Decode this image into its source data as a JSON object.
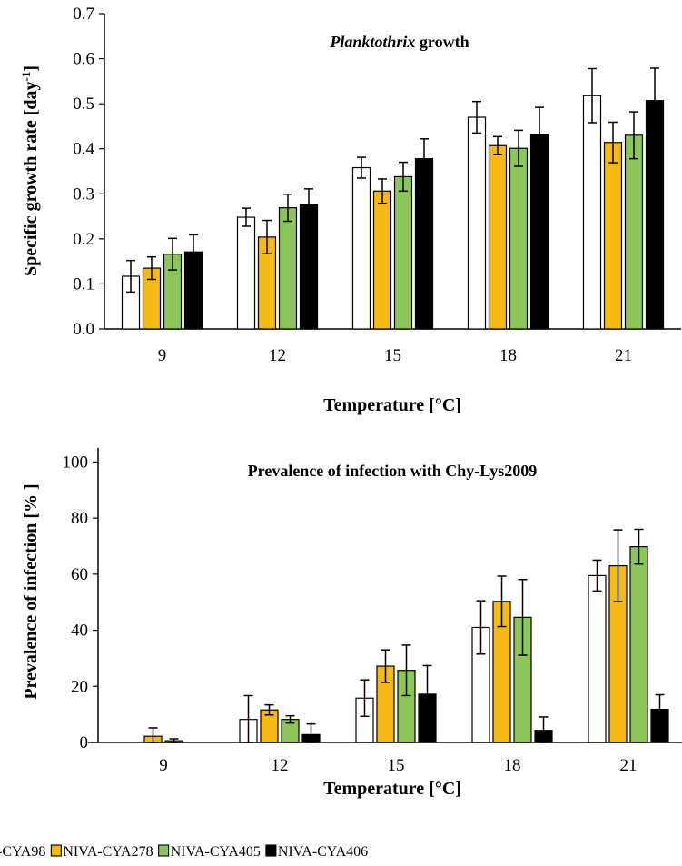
{
  "chart_data": [
    {
      "type": "bar",
      "title_italic": "Planktothrix",
      "title_rest": "growth",
      "xlabel": "Temperature [°C]",
      "ylabel": "Specific growth rate [day",
      "ylabel_sup": "-1",
      "ylabel_close": "]",
      "categories": [
        "9",
        "12",
        "15",
        "18",
        "21"
      ],
      "ylim": [
        0,
        0.7
      ],
      "yticks": [
        0.0,
        0.1,
        0.2,
        0.3,
        0.4,
        0.5,
        0.6,
        0.7
      ],
      "ytick_labels": [
        "0.0",
        "0.1",
        "0.2",
        "0.3",
        "0.4",
        "0.5",
        "0.6",
        "0.7"
      ],
      "grid": false,
      "series": [
        {
          "values": [
            0.117,
            0.248,
            0.358,
            0.47,
            0.518
          ],
          "errors": [
            0.035,
            0.02,
            0.023,
            0.035,
            0.06
          ]
        },
        {
          "values": [
            0.135,
            0.204,
            0.306,
            0.407,
            0.414
          ],
          "errors": [
            0.025,
            0.037,
            0.027,
            0.02,
            0.045
          ]
        },
        {
          "values": [
            0.166,
            0.269,
            0.338,
            0.401,
            0.43
          ],
          "errors": [
            0.035,
            0.03,
            0.032,
            0.04,
            0.052
          ]
        },
        {
          "values": [
            0.171,
            0.276,
            0.378,
            0.432,
            0.507
          ],
          "errors": [
            0.038,
            0.035,
            0.044,
            0.06,
            0.072
          ]
        }
      ]
    },
    {
      "type": "bar",
      "title": "Prevalence of infection with Chy-Lys2009",
      "xlabel": "Temperature [°C]",
      "ylabel": "Prevalence of  infection [% ]",
      "categories": [
        "9",
        "12",
        "15",
        "18",
        "21"
      ],
      "ylim": [
        0,
        105
      ],
      "yticks": [
        0,
        20,
        40,
        60,
        80,
        100
      ],
      "ytick_labels": [
        "0",
        "20",
        "40",
        "60",
        "80",
        "100"
      ],
      "grid": false,
      "series": [
        {
          "values": [
            0,
            8.2,
            15.8,
            41.0,
            59.5
          ],
          "errors": [
            0,
            8.5,
            6.5,
            9.5,
            5.5
          ]
        },
        {
          "values": [
            2.2,
            11.6,
            27.2,
            50.3,
            63.0
          ],
          "errors": [
            3.0,
            1.8,
            5.8,
            9.0,
            12.8
          ]
        },
        {
          "values": [
            0.6,
            8.2,
            25.7,
            44.6,
            69.8
          ],
          "errors": [
            0.7,
            1.3,
            9.0,
            13.5,
            6.2
          ]
        },
        {
          "values": [
            0,
            2.8,
            17.2,
            4.3,
            11.8
          ],
          "errors": [
            0,
            3.8,
            10.2,
            4.8,
            5.2
          ]
        }
      ]
    }
  ],
  "legend": [
    {
      "label": "-CYA98",
      "color": "#ffffff"
    },
    {
      "label": "NIVA-CYA278",
      "color": "#f5b915"
    },
    {
      "label": "NIVA-CYA405",
      "color": "#8cc55a"
    },
    {
      "label": "NIVA-CYA406",
      "color": "#000000"
    }
  ],
  "series_colors": [
    "#ffffff",
    "#f5b915",
    "#8cc55a",
    "#000000"
  ]
}
